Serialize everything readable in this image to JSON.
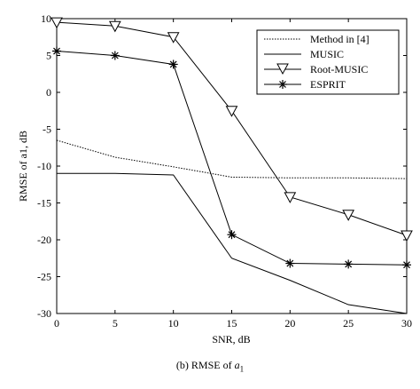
{
  "chart_data": {
    "type": "line",
    "xlabel": "SNR, dB",
    "ylabel": "RMSE of a1, dB",
    "xlim": [
      0,
      30
    ],
    "ylim": [
      -30,
      10
    ],
    "xticks": [
      0,
      5,
      10,
      15,
      20,
      25,
      30
    ],
    "yticks": [
      10,
      5,
      0,
      -5,
      -10,
      -15,
      -20,
      -25,
      -30
    ],
    "grid": false,
    "legend_position": "top-right",
    "x": [
      0,
      5,
      10,
      15,
      20,
      25,
      30
    ],
    "series": [
      {
        "name": "Method in [4]",
        "style": "dotted",
        "marker": "none",
        "values": [
          -6.5,
          -8.8,
          -10.1,
          -11.5,
          -11.6,
          -11.6,
          -11.7
        ]
      },
      {
        "name": "MUSIC",
        "style": "solid",
        "marker": "none",
        "values": [
          -11.0,
          -11.0,
          -11.2,
          -22.5,
          -25.5,
          -28.8,
          -30.0
        ]
      },
      {
        "name": "Root-MUSIC",
        "style": "solid",
        "marker": "triangle-down",
        "values": [
          9.5,
          9.0,
          7.5,
          -2.5,
          -14.2,
          -16.6,
          -19.4
        ]
      },
      {
        "name": "ESPRIT",
        "style": "solid",
        "marker": "asterisk",
        "values": [
          5.6,
          5.0,
          3.8,
          -19.3,
          -23.2,
          -23.3,
          -23.4
        ]
      }
    ]
  },
  "caption": {
    "prefix": "(b) RMSE of ",
    "symbol": "a",
    "subscript": "1"
  }
}
